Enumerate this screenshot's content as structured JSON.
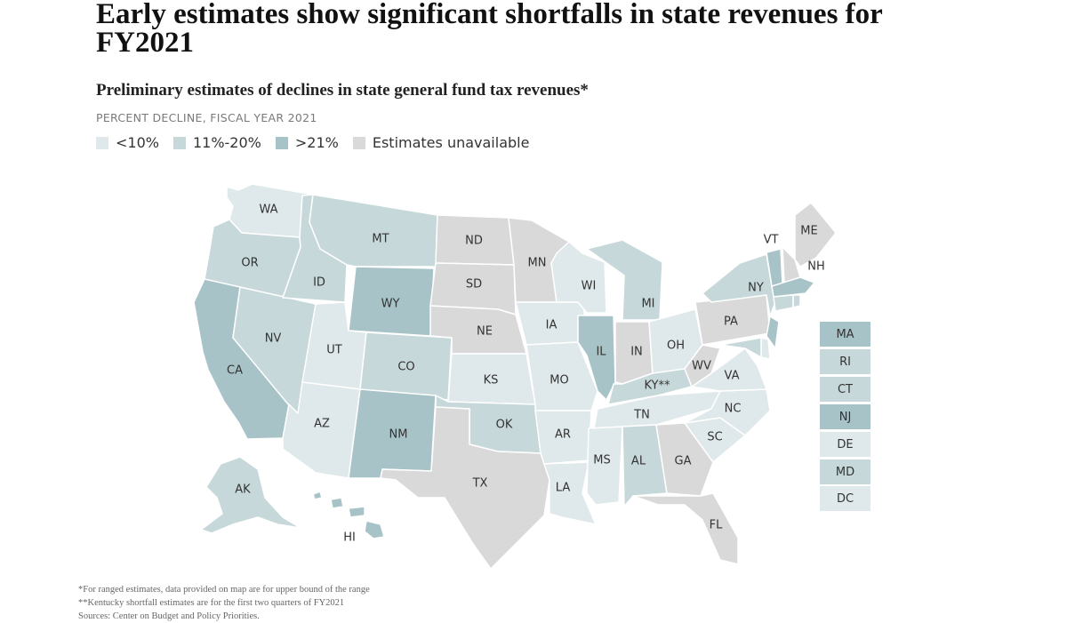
{
  "title": "Early estimates show significant shortfalls in state revenues for FY2021",
  "subtitle": "Preliminary estimates of declines in state general fund tax revenues*",
  "unit_label": "PERCENT DECLINE, FISCAL YEAR 2021",
  "colors": {
    "low": "#dfe8ea",
    "mid": "#c6d8da",
    "high": "#a8c3c7",
    "na": "#d9d9d9"
  },
  "legend": [
    {
      "category": "low",
      "label": "<10%"
    },
    {
      "category": "mid",
      "label": "11%-20%"
    },
    {
      "category": "high",
      "label": ">21%"
    },
    {
      "category": "na",
      "label": "Estimates unavailable"
    }
  ],
  "states": {
    "WA": "low",
    "OR": "mid",
    "CA": "high",
    "NV": "mid",
    "ID": "mid",
    "MT": "mid",
    "WY": "high",
    "UT": "low",
    "AZ": "low",
    "CO": "mid",
    "NM": "high",
    "ND": "na",
    "SD": "na",
    "NE": "na",
    "KS": "low",
    "OK": "mid",
    "TX": "na",
    "MN": "na",
    "IA": "low",
    "MO": "low",
    "AR": "low",
    "LA": "low",
    "WI": "low",
    "IL": "high",
    "MI": "mid",
    "IN": "na",
    "OH": "low",
    "KY": "mid",
    "TN": "low",
    "MS": "low",
    "AL": "mid",
    "GA": "na",
    "FL": "na",
    "SC": "low",
    "NC": "low",
    "VA": "low",
    "WV": "na",
    "PA": "na",
    "NY": "mid",
    "VT": "high",
    "NH": "na",
    "ME": "na",
    "AK": "mid",
    "HI": "high",
    "MA": "high",
    "RI": "mid",
    "CT": "mid",
    "NJ": "high",
    "DE": "low",
    "MD": "mid",
    "DC": "low"
  },
  "state_labels": {
    "WA": "WA",
    "OR": "OR",
    "CA": "CA",
    "NV": "NV",
    "ID": "ID",
    "MT": "MT",
    "WY": "WY",
    "UT": "UT",
    "AZ": "AZ",
    "CO": "CO",
    "NM": "NM",
    "ND": "ND",
    "SD": "SD",
    "NE": "NE",
    "KS": "KS",
    "OK": "OK",
    "TX": "TX",
    "MN": "MN",
    "IA": "IA",
    "MO": "MO",
    "AR": "AR",
    "LA": "LA",
    "WI": "WI",
    "IL": "IL",
    "MI": "MI",
    "IN": "IN",
    "OH": "OH",
    "KY": "KY**",
    "TN": "TN",
    "MS": "MS",
    "AL": "AL",
    "GA": "GA",
    "FL": "FL",
    "SC": "SC",
    "NC": "NC",
    "VA": "VA",
    "WV": "WV",
    "PA": "PA",
    "NY": "NY",
    "VT": "VT",
    "NH": "NH",
    "ME": "ME",
    "AK": "AK",
    "HI": "HI"
  },
  "small_states": [
    {
      "code": "MA",
      "label": "MA"
    },
    {
      "code": "RI",
      "label": "RI"
    },
    {
      "code": "CT",
      "label": "CT"
    },
    {
      "code": "NJ",
      "label": "NJ"
    },
    {
      "code": "DE",
      "label": "DE"
    },
    {
      "code": "MD",
      "label": "MD"
    },
    {
      "code": "DC",
      "label": "DC"
    }
  ],
  "notes": [
    "*For ranged estimates, data provided on map are for upper bound of the range",
    "**Kentucky shortfall estimates are for the first two quarters of FY2021",
    "Sources: Center on Budget and Policy Priorities."
  ]
}
